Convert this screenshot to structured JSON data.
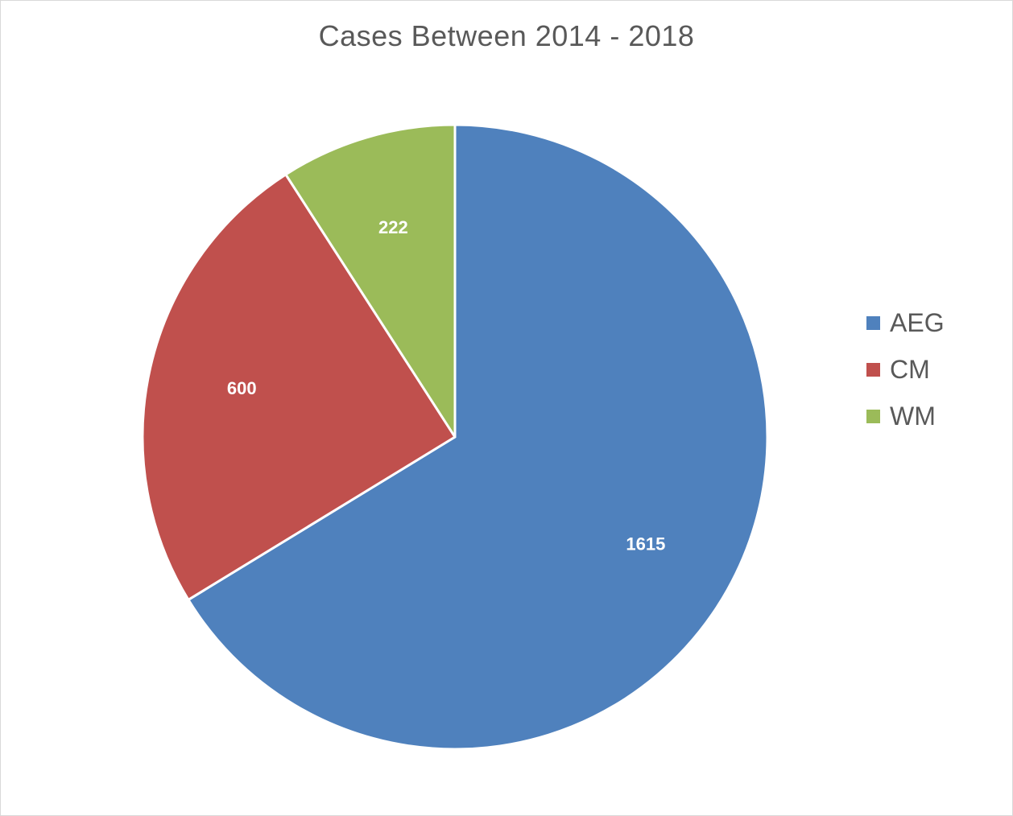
{
  "chart_data": {
    "type": "pie",
    "title": "Cases Between 2014 - 2018",
    "categories": [
      "AEG",
      "CM",
      "WM"
    ],
    "values": [
      1615,
      600,
      222
    ],
    "colors": [
      "#4F81BD",
      "#C0504D",
      "#9BBB59"
    ],
    "data_labels": [
      "1615",
      "600",
      "222"
    ],
    "legend_position": "right",
    "start_angle": "12 o'clock, clockwise"
  }
}
